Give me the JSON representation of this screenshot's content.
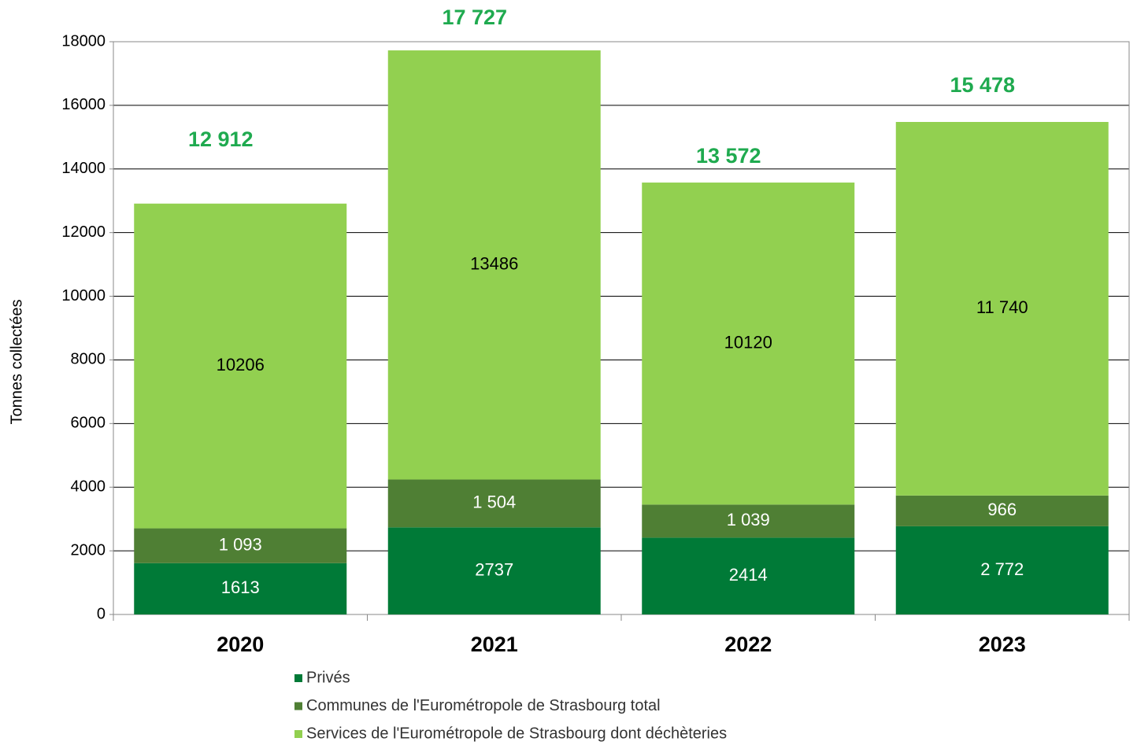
{
  "chart_data": {
    "type": "stacked_bar",
    "y_label": "Tonnes collectées",
    "categories": [
      "2020",
      "2021",
      "2022",
      "2023"
    ],
    "series": [
      {
        "name": "Privés",
        "color": "#007a37",
        "values": [
          1613,
          2737,
          2414,
          2772
        ],
        "value_labels": [
          "1613",
          "2737",
          "2414",
          "2 772"
        ]
      },
      {
        "name": "Communes de l'Eurométropole de Strasbourg total",
        "color": "#4f7f34",
        "values": [
          1093,
          1504,
          1039,
          966
        ],
        "value_labels": [
          "1 093",
          "1 504",
          "1 039",
          "966"
        ]
      },
      {
        "name": "Services de l'Eurométropole de Strasbourg dont déchèteries",
        "color": "#92d050",
        "values": [
          10206,
          13486,
          10120,
          11740
        ],
        "value_labels": [
          "10206",
          "13486",
          "10120",
          "11 740"
        ]
      }
    ],
    "totals": {
      "color": "#1faa4f",
      "values": [
        12912,
        17727,
        13572,
        15478
      ],
      "value_labels": [
        "12 912",
        "17 727",
        "13 572",
        "15 478"
      ]
    },
    "ylim": [
      0,
      18000
    ],
    "yticks": [
      0,
      2000,
      4000,
      6000,
      8000,
      10000,
      12000,
      14000,
      16000,
      18000
    ],
    "grid": true,
    "legend": "bottom"
  }
}
